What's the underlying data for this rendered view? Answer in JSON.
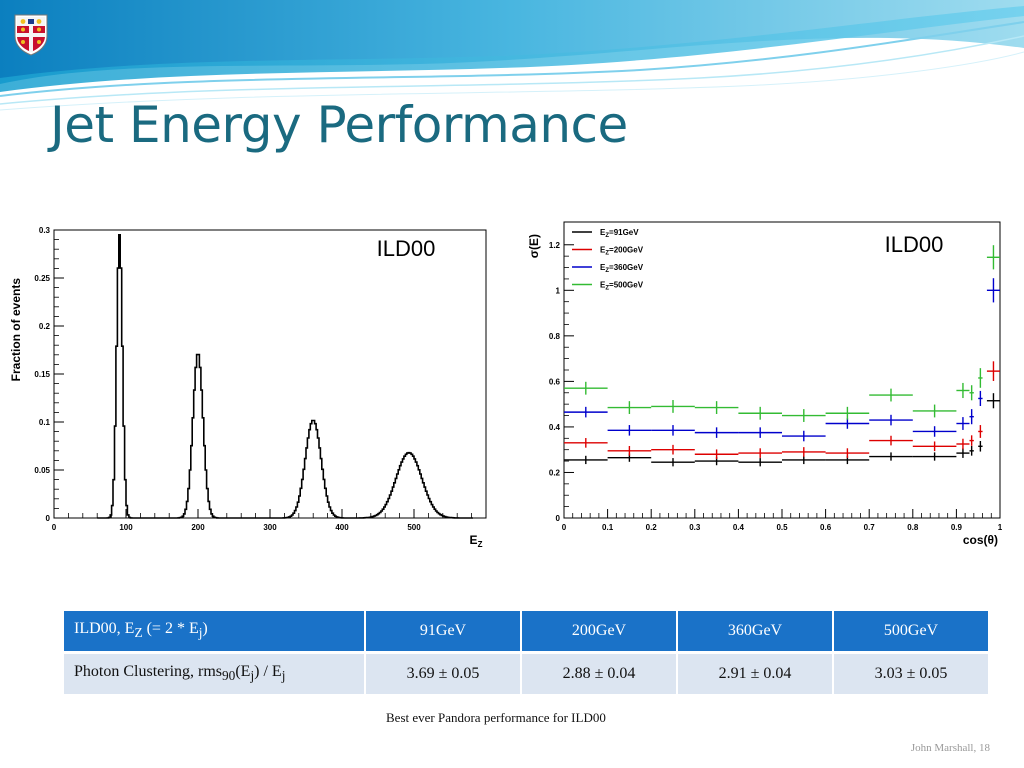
{
  "slide": {
    "title": "Jet Energy Performance",
    "footer": "John Marshall, 18",
    "caption": "Best ever Pandora performance for ILD00"
  },
  "colors": {
    "title": "#1a6a80",
    "header_bg": "#1a72c8",
    "row_bg": "#dce5f1"
  },
  "icons": {
    "logo": "university-crest-icon"
  },
  "chart_data": [
    {
      "type": "line",
      "label": "ILD00",
      "xlabel": "E",
      "xlabel_sub": "Z",
      "ylabel": "Fraction of events",
      "xlim": [
        0,
        600
      ],
      "ylim": [
        0,
        0.3
      ],
      "xticks": [
        0,
        100,
        200,
        300,
        400,
        500
      ],
      "yticks": [
        0,
        0.05,
        0.1,
        0.15,
        0.2,
        0.25,
        0.3
      ],
      "peaks": [
        {
          "name": "91GeV",
          "center": 91,
          "height": 0.295,
          "width": 4
        },
        {
          "name": "200GeV",
          "center": 200,
          "height": 0.172,
          "width": 7
        },
        {
          "name": "360GeV",
          "center": 360,
          "height": 0.102,
          "width": 11
        },
        {
          "name": "500GeV",
          "center": 493,
          "height": 0.068,
          "width": 18
        }
      ]
    },
    {
      "type": "scatter",
      "label": "ILD00",
      "xlabel": "cos(θ)",
      "ylabel": "σ(E)",
      "xlim": [
        0,
        1
      ],
      "ylim": [
        0,
        1.3
      ],
      "xticks": [
        0,
        0.1,
        0.2,
        0.3,
        0.4,
        0.5,
        0.6,
        0.7,
        0.8,
        0.9,
        1
      ],
      "yticks": [
        0,
        0.2,
        0.4,
        0.6,
        0.8,
        1,
        1.2
      ],
      "legend_position": "top-left",
      "series": [
        {
          "name": "E",
          "name_sub": "Z",
          "name_rest": "=91GeV",
          "color": "#000000",
          "points": [
            [
              0.05,
              0.255,
              0.05,
              0.005
            ],
            [
              0.15,
              0.265,
              0.05,
              0.005
            ],
            [
              0.25,
              0.245,
              0.05,
              0.005
            ],
            [
              0.35,
              0.25,
              0.05,
              0.005
            ],
            [
              0.45,
              0.245,
              0.05,
              0.005
            ],
            [
              0.55,
              0.255,
              0.05,
              0.005
            ],
            [
              0.65,
              0.255,
              0.05,
              0.005
            ],
            [
              0.75,
              0.27,
              0.05,
              0.005
            ],
            [
              0.85,
              0.27,
              0.05,
              0.005
            ],
            [
              0.915,
              0.285,
              0.015,
              0.008
            ],
            [
              0.935,
              0.295,
              0.005,
              0.008
            ],
            [
              0.955,
              0.315,
              0.005,
              0.01
            ],
            [
              0.985,
              0.515,
              0.015,
              0.02
            ]
          ]
        },
        {
          "name": "E",
          "name_sub": "Z",
          "name_rest": "=200GeV",
          "color": "#dd0000",
          "points": [
            [
              0.05,
              0.33,
              0.05,
              0.008
            ],
            [
              0.15,
              0.295,
              0.05,
              0.008
            ],
            [
              0.25,
              0.3,
              0.05,
              0.008
            ],
            [
              0.35,
              0.28,
              0.05,
              0.008
            ],
            [
              0.45,
              0.285,
              0.05,
              0.008
            ],
            [
              0.55,
              0.29,
              0.05,
              0.008
            ],
            [
              0.65,
              0.285,
              0.05,
              0.008
            ],
            [
              0.75,
              0.34,
              0.05,
              0.008
            ],
            [
              0.85,
              0.315,
              0.05,
              0.008
            ],
            [
              0.915,
              0.325,
              0.015,
              0.01
            ],
            [
              0.935,
              0.34,
              0.005,
              0.01
            ],
            [
              0.955,
              0.38,
              0.005,
              0.015
            ],
            [
              0.985,
              0.645,
              0.015,
              0.03
            ]
          ]
        },
        {
          "name": "E",
          "name_sub": "Z",
          "name_rest": "=360GeV",
          "color": "#0000cc",
          "points": [
            [
              0.05,
              0.465,
              0.05,
              0.01
            ],
            [
              0.15,
              0.385,
              0.05,
              0.01
            ],
            [
              0.25,
              0.385,
              0.05,
              0.01
            ],
            [
              0.35,
              0.375,
              0.05,
              0.01
            ],
            [
              0.45,
              0.375,
              0.05,
              0.01
            ],
            [
              0.55,
              0.36,
              0.05,
              0.01
            ],
            [
              0.65,
              0.415,
              0.05,
              0.01
            ],
            [
              0.75,
              0.43,
              0.05,
              0.01
            ],
            [
              0.85,
              0.38,
              0.05,
              0.01
            ],
            [
              0.915,
              0.415,
              0.015,
              0.015
            ],
            [
              0.935,
              0.445,
              0.005,
              0.02
            ],
            [
              0.955,
              0.525,
              0.005,
              0.02
            ],
            [
              0.985,
              1.0,
              0.015,
              0.04
            ]
          ]
        },
        {
          "name": "E",
          "name_sub": "Z",
          "name_rest": "=500GeV",
          "color": "#33bb33",
          "points": [
            [
              0.05,
              0.57,
              0.05,
              0.015
            ],
            [
              0.15,
              0.485,
              0.05,
              0.015
            ],
            [
              0.25,
              0.49,
              0.05,
              0.015
            ],
            [
              0.35,
              0.485,
              0.05,
              0.015
            ],
            [
              0.45,
              0.46,
              0.05,
              0.015
            ],
            [
              0.55,
              0.45,
              0.05,
              0.015
            ],
            [
              0.65,
              0.46,
              0.05,
              0.015
            ],
            [
              0.75,
              0.54,
              0.05,
              0.015
            ],
            [
              0.85,
              0.47,
              0.05,
              0.015
            ],
            [
              0.915,
              0.56,
              0.015,
              0.02
            ],
            [
              0.935,
              0.55,
              0.005,
              0.02
            ],
            [
              0.955,
              0.615,
              0.005,
              0.03
            ],
            [
              0.985,
              1.145,
              0.015,
              0.04
            ]
          ]
        }
      ]
    }
  ],
  "table": {
    "header": {
      "label_pre": "ILD00, E",
      "label_sub": "Z",
      "label_mid": " (= 2 * E",
      "label_sub2": "j",
      "label_post": ")"
    },
    "columns": [
      "91GeV",
      "200GeV",
      "360GeV",
      "500GeV"
    ],
    "row": {
      "label_pre": "Photon Clustering, rms",
      "label_sub": "90",
      "label_mid": "(E",
      "label_sub2": "j",
      "label_mid2": ") / E",
      "label_sub3": "j",
      "values": [
        "3.69 ± 0.05",
        "2.88 ± 0.04",
        "2.91 ± 0.04",
        "3.03 ± 0.05"
      ]
    }
  }
}
